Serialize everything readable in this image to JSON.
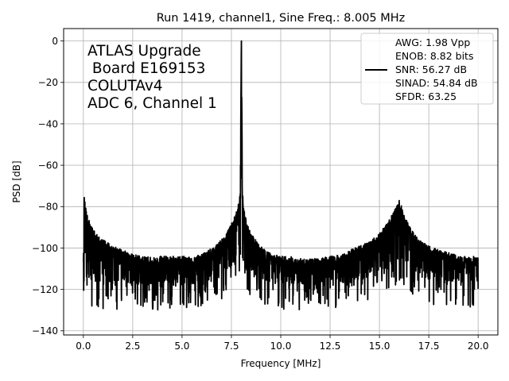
{
  "chart_data": {
    "type": "line",
    "title": "Run 1419, channel1, Sine Freq.: 8.005 MHz",
    "xlabel": "Frequency [MHz]",
    "ylabel": "PSD [dB]",
    "xlim": [
      -1.0,
      21.0
    ],
    "ylim": [
      -142,
      6
    ],
    "xticks": [
      0.0,
      2.5,
      5.0,
      7.5,
      10.0,
      12.5,
      15.0,
      17.5,
      20.0
    ],
    "xtick_labels": [
      "0.0",
      "2.5",
      "5.0",
      "7.5",
      "10.0",
      "12.5",
      "15.0",
      "17.5",
      "20.0"
    ],
    "yticks": [
      0,
      -20,
      -40,
      -60,
      -80,
      -100,
      -120,
      -140
    ],
    "ytick_labels": [
      "0",
      "−20",
      "−40",
      "−60",
      "−80",
      "−100",
      "−120",
      "−140"
    ],
    "grid": true,
    "legend_position": "top-right",
    "annotation_lines": [
      "ATLAS Upgrade",
      " Board E169153",
      "COLUTAv4",
      "ADC 6, Channel 1"
    ],
    "legend_lines": [
      "AWG: 1.98 Vpp",
      "ENOB: 8.82 bits",
      "SNR: 56.27 dB",
      "SINAD: 54.84 dB",
      "SFDR: 63.25"
    ],
    "series": [
      {
        "color": "#000000",
        "x": [
          0.0,
          0.05,
          0.1,
          0.2,
          0.35,
          0.5,
          0.75,
          1.0,
          1.5,
          2.0,
          2.5,
          3.0,
          3.5,
          4.0,
          4.5,
          5.0,
          5.5,
          6.0,
          6.5,
          7.0,
          7.3,
          7.5,
          7.7,
          7.85,
          7.95,
          8.005,
          8.06,
          8.15,
          8.3,
          8.5,
          8.8,
          9.2,
          9.6,
          10.0,
          10.5,
          11.0,
          11.5,
          12.0,
          12.5,
          13.0,
          13.5,
          14.0,
          14.5,
          15.0,
          15.4,
          15.7,
          15.9,
          16.0,
          16.1,
          16.3,
          16.6,
          17.0,
          17.5,
          18.0,
          18.5,
          19.0,
          19.5,
          20.0
        ],
        "values": [
          -104,
          -73,
          -78,
          -84,
          -88,
          -91,
          -94,
          -96,
          -99,
          -101,
          -103,
          -104,
          -104,
          -104,
          -104,
          -104,
          -104,
          -103,
          -100,
          -96,
          -92,
          -88,
          -84,
          -79,
          -72,
          0,
          -73,
          -82,
          -88,
          -93,
          -97,
          -101,
          -103,
          -104,
          -104,
          -105,
          -105,
          -105,
          -104,
          -103,
          -101,
          -99,
          -97,
          -93,
          -88,
          -83,
          -79,
          -77,
          -79,
          -85,
          -91,
          -96,
          -99,
          -101,
          -102,
          -103,
          -104,
          -104
        ],
        "lower_envelope": [
          -112,
          -112,
          -113,
          -115,
          -116,
          -117,
          -118,
          -118,
          -118,
          -118,
          -118,
          -118,
          -118,
          -118,
          -118,
          -118,
          -118,
          -117,
          -115,
          -113,
          -111,
          -109,
          -107,
          -105,
          -100,
          -60,
          -100,
          -106,
          -109,
          -112,
          -115,
          -116,
          -117,
          -118,
          -118,
          -118,
          -118,
          -118,
          -118,
          -118,
          -117,
          -116,
          -115,
          -113,
          -111,
          -108,
          -106,
          -105,
          -106,
          -108,
          -111,
          -114,
          -115,
          -116,
          -117,
          -117,
          -117,
          -116
        ]
      }
    ]
  }
}
